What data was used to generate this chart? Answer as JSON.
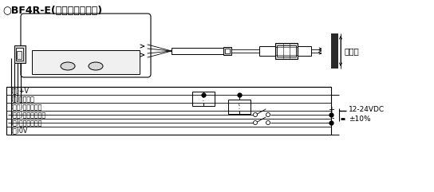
{
  "title": "○BF4R-E(外部同步输入型)",
  "label_brown": "(褐)+V",
  "label_black": "(黑)控制输出",
  "label_white": "(白色)自诊断输出",
  "label_pink": "(粉红)外部同步输入",
  "label_orange": "(橙)透光停止输入",
  "label_blue": "(蓝)0V",
  "label_detect": "检测物",
  "label_voltage": "12-24VDC",
  "label_tolerance": "±10%",
  "bg_color": "#ffffff",
  "line_color": "#000000"
}
